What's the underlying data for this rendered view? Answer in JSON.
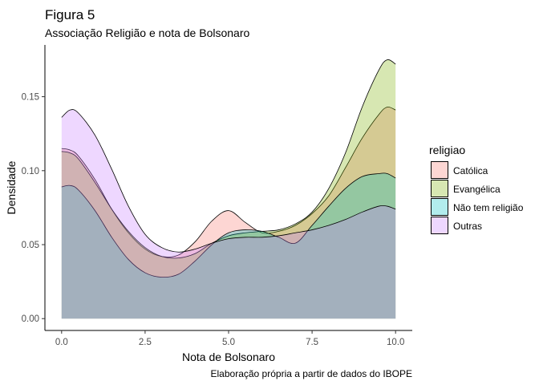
{
  "header": {
    "title": "Figura 5",
    "subtitle": "Associação Religião e nota de Bolsonaro"
  },
  "caption": "Elaboração própria a partir de dados do IBOPE",
  "chart_data": {
    "type": "area",
    "xlabel": "Nota de Bolsonaro",
    "ylabel": "Densidade",
    "xlim": [
      -0.5,
      10.5
    ],
    "ylim": [
      -0.008,
      0.185
    ],
    "x_ticks": [
      0,
      2.5,
      5,
      7.5,
      10
    ],
    "x_tick_labels": [
      "0.0",
      "2.5",
      "5.0",
      "7.5",
      "10.0"
    ],
    "y_ticks": [
      0,
      0.05,
      0.1,
      0.15
    ],
    "y_tick_labels": [
      "0.00",
      "0.05",
      "0.10",
      "0.15"
    ],
    "grid": false,
    "legend": {
      "title": "religiao",
      "position": "right"
    },
    "x": [
      0,
      0.25,
      0.5,
      1,
      1.5,
      2,
      2.5,
      3,
      3.5,
      4,
      4.5,
      5,
      5.5,
      6,
      6.5,
      7,
      7.5,
      8,
      8.5,
      9,
      9.5,
      9.75,
      10
    ],
    "series": [
      {
        "name": "Católica",
        "color": "#F8766D",
        "values": [
          0.115,
          0.114,
          0.11,
          0.094,
          0.074,
          0.058,
          0.047,
          0.042,
          0.043,
          0.052,
          0.066,
          0.073,
          0.065,
          0.058,
          0.059,
          0.063,
          0.071,
          0.083,
          0.102,
          0.122,
          0.138,
          0.143,
          0.141
        ]
      },
      {
        "name": "Evangélica",
        "color": "#7CAE00",
        "values": [
          0.113,
          0.112,
          0.108,
          0.092,
          0.074,
          0.059,
          0.048,
          0.042,
          0.041,
          0.044,
          0.051,
          0.056,
          0.058,
          0.059,
          0.06,
          0.064,
          0.072,
          0.088,
          0.112,
          0.143,
          0.168,
          0.175,
          0.172
        ]
      },
      {
        "name": "Não tem religião",
        "color": "#00BFC4",
        "values": [
          0.089,
          0.09,
          0.087,
          0.073,
          0.055,
          0.04,
          0.031,
          0.028,
          0.03,
          0.039,
          0.05,
          0.058,
          0.06,
          0.059,
          0.055,
          0.051,
          0.063,
          0.076,
          0.088,
          0.096,
          0.098,
          0.098,
          0.095
        ]
      },
      {
        "name": "Outras",
        "color": "#C77CFF",
        "values": [
          0.136,
          0.141,
          0.139,
          0.124,
          0.101,
          0.076,
          0.057,
          0.048,
          0.045,
          0.047,
          0.051,
          0.054,
          0.055,
          0.055,
          0.056,
          0.058,
          0.06,
          0.063,
          0.067,
          0.072,
          0.076,
          0.076,
          0.074
        ]
      }
    ]
  }
}
